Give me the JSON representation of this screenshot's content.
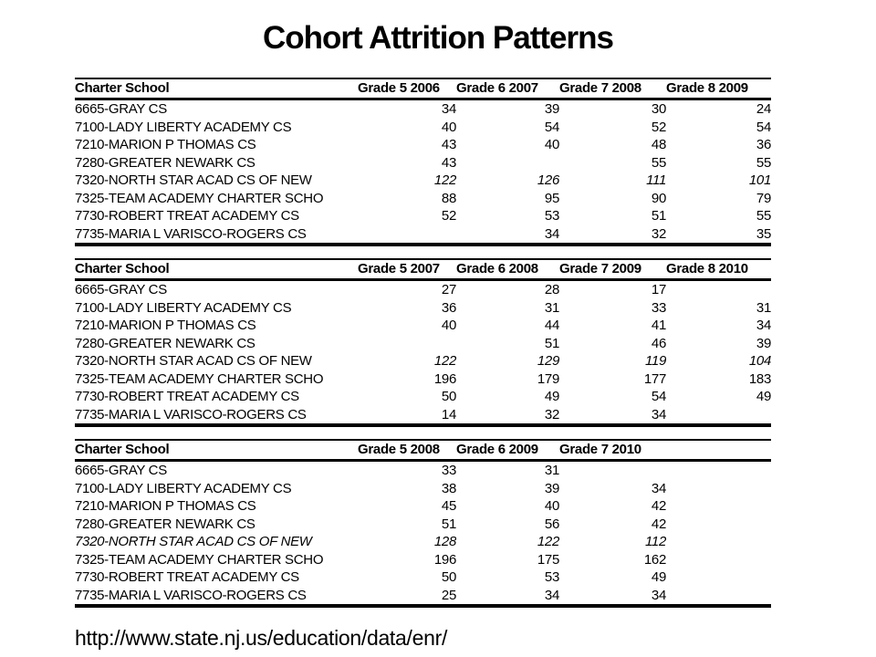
{
  "title": "Cohort Attrition Patterns",
  "footer_url": "http://www.state.nj.us/education/data/enr/",
  "colors": {
    "background": "#ffffff",
    "text": "#000000",
    "rule": "#000000"
  },
  "tables": [
    {
      "columns": [
        "Charter School",
        "Grade 5 2006",
        "Grade 6 2007",
        "Grade 7 2008",
        "Grade 8 2009"
      ],
      "rows": [
        {
          "school": "6665-GRAY CS",
          "values": [
            "34",
            "39",
            "30",
            "24"
          ],
          "values_emphasis": false,
          "name_emphasis": false
        },
        {
          "school": "7100-LADY LIBERTY ACADEMY CS",
          "values": [
            "40",
            "54",
            "52",
            "54"
          ],
          "values_emphasis": false,
          "name_emphasis": false
        },
        {
          "school": "7210-MARION P THOMAS CS",
          "values": [
            "43",
            "40",
            "48",
            "36"
          ],
          "values_emphasis": false,
          "name_emphasis": false
        },
        {
          "school": "7280-GREATER NEWARK CS",
          "values": [
            "43",
            "",
            "55",
            "55"
          ],
          "values_emphasis": false,
          "name_emphasis": false
        },
        {
          "school": "7320-NORTH STAR ACAD CS OF NEW",
          "values": [
            "122",
            "126",
            "111",
            "101"
          ],
          "values_emphasis": true,
          "name_emphasis": false
        },
        {
          "school": "7325-TEAM ACADEMY CHARTER SCHO",
          "values": [
            "88",
            "95",
            "90",
            "79"
          ],
          "values_emphasis": false,
          "name_emphasis": false
        },
        {
          "school": "7730-ROBERT TREAT ACADEMY CS",
          "values": [
            "52",
            "53",
            "51",
            "55"
          ],
          "values_emphasis": false,
          "name_emphasis": false
        },
        {
          "school": "7735-MARIA L VARISCO-ROGERS CS",
          "values": [
            "",
            "34",
            "32",
            "35"
          ],
          "values_emphasis": false,
          "name_emphasis": false
        }
      ]
    },
    {
      "columns": [
        "Charter School",
        "Grade 5 2007",
        "Grade 6 2008",
        "Grade 7 2009",
        "Grade 8 2010"
      ],
      "rows": [
        {
          "school": "6665-GRAY CS",
          "values": [
            "27",
            "28",
            "17",
            ""
          ],
          "values_emphasis": false,
          "name_emphasis": false
        },
        {
          "school": "7100-LADY LIBERTY ACADEMY CS",
          "values": [
            "36",
            "31",
            "33",
            "31"
          ],
          "values_emphasis": false,
          "name_emphasis": false
        },
        {
          "school": "7210-MARION P THOMAS CS",
          "values": [
            "40",
            "44",
            "41",
            "34"
          ],
          "values_emphasis": false,
          "name_emphasis": false
        },
        {
          "school": "7280-GREATER NEWARK CS",
          "values": [
            "",
            "51",
            "46",
            "39"
          ],
          "values_emphasis": false,
          "name_emphasis": false
        },
        {
          "school": "7320-NORTH STAR ACAD CS OF NEW",
          "values": [
            "122",
            "129",
            "119",
            "104"
          ],
          "values_emphasis": true,
          "name_emphasis": false
        },
        {
          "school": "7325-TEAM ACADEMY CHARTER SCHO",
          "values": [
            "196",
            "179",
            "177",
            "183"
          ],
          "values_emphasis": false,
          "name_emphasis": false
        },
        {
          "school": "7730-ROBERT TREAT ACADEMY CS",
          "values": [
            "50",
            "49",
            "54",
            "49"
          ],
          "values_emphasis": false,
          "name_emphasis": false
        },
        {
          "school": "7735-MARIA L VARISCO-ROGERS CS",
          "values": [
            "14",
            "32",
            "34",
            ""
          ],
          "values_emphasis": false,
          "name_emphasis": false
        }
      ]
    },
    {
      "columns": [
        "Charter School",
        "Grade 5 2008",
        "Grade 6 2009",
        "Grade 7 2010"
      ],
      "rows": [
        {
          "school": "6665-GRAY CS",
          "values": [
            "33",
            "31",
            ""
          ],
          "values_emphasis": false,
          "name_emphasis": false
        },
        {
          "school": "7100-LADY LIBERTY ACADEMY CS",
          "values": [
            "38",
            "39",
            "34"
          ],
          "values_emphasis": false,
          "name_emphasis": false
        },
        {
          "school": "7210-MARION P THOMAS CS",
          "values": [
            "45",
            "40",
            "42"
          ],
          "values_emphasis": false,
          "name_emphasis": false
        },
        {
          "school": "7280-GREATER NEWARK CS",
          "values": [
            "51",
            "56",
            "42"
          ],
          "values_emphasis": false,
          "name_emphasis": false
        },
        {
          "school": "7320-NORTH STAR ACAD CS OF NEW",
          "values": [
            "128",
            "122",
            "112"
          ],
          "values_emphasis": true,
          "name_emphasis": true
        },
        {
          "school": "7325-TEAM ACADEMY CHARTER SCHO",
          "values": [
            "196",
            "175",
            "162"
          ],
          "values_emphasis": false,
          "name_emphasis": false
        },
        {
          "school": "7730-ROBERT TREAT ACADEMY CS",
          "values": [
            "50",
            "53",
            "49"
          ],
          "values_emphasis": false,
          "name_emphasis": false
        },
        {
          "school": "7735-MARIA L VARISCO-ROGERS CS",
          "values": [
            "25",
            "34",
            "34"
          ],
          "values_emphasis": false,
          "name_emphasis": false
        }
      ]
    }
  ]
}
